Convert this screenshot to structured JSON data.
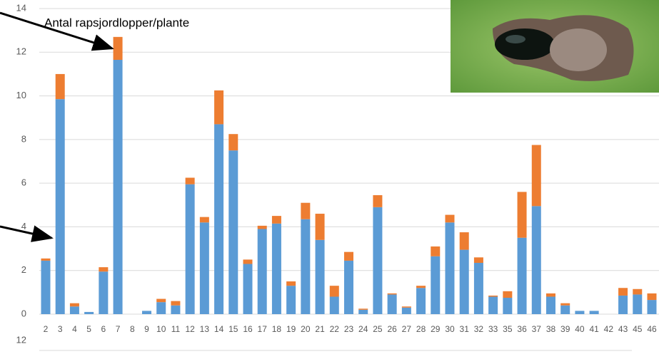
{
  "chart_data": [
    {
      "type": "stacked_bar",
      "annotation": "Antal rapsjordlopper/plante",
      "categories": [
        "2",
        "3",
        "4",
        "5",
        "6",
        "7",
        "8",
        "9",
        "10",
        "11",
        "12",
        "13",
        "14",
        "15",
        "16",
        "17",
        "18",
        "19",
        "20",
        "21",
        "22",
        "23",
        "24",
        "25",
        "26",
        "27",
        "28",
        "29",
        "30",
        "31",
        "32",
        "33",
        "35",
        "36",
        "37",
        "38",
        "39",
        "40",
        "41",
        "42",
        "43",
        "45",
        "46"
      ],
      "series": [
        {
          "color": "#5b9bd5",
          "values": [
            2.45,
            9.85,
            0.35,
            0.1,
            1.95,
            11.65,
            0,
            0.15,
            0.55,
            0.4,
            5.95,
            4.2,
            8.7,
            7.5,
            2.3,
            3.9,
            4.15,
            1.3,
            4.35,
            3.4,
            0.8,
            2.45,
            0.2,
            4.9,
            0.9,
            0.3,
            1.2,
            2.65,
            4.2,
            2.95,
            2.35,
            0.8,
            0.75,
            3.5,
            4.95,
            0.8,
            0.4,
            0.15,
            0.15,
            0,
            0.85,
            0.9,
            0.65
          ]
        },
        {
          "color": "#ed7d31",
          "values": [
            0.1,
            1.15,
            0.15,
            0,
            0.2,
            1.05,
            0,
            0,
            0.15,
            0.2,
            0.3,
            0.25,
            1.55,
            0.75,
            0.2,
            0.15,
            0.35,
            0.2,
            0.75,
            1.2,
            0.5,
            0.4,
            0.05,
            0.55,
            0.05,
            0.05,
            0.1,
            0.45,
            0.35,
            0.8,
            0.25,
            0.05,
            0.3,
            2.1,
            2.8,
            0.15,
            0.1,
            0,
            0,
            0,
            0.35,
            0.25,
            0.3
          ]
        }
      ],
      "ylim": [
        0,
        14
      ],
      "yticks": [
        0,
        2,
        4,
        6,
        8,
        10,
        12,
        14
      ],
      "grid": true
    },
    {
      "type": "stacked_bar",
      "yticks": [
        12
      ],
      "grid": true
    }
  ]
}
